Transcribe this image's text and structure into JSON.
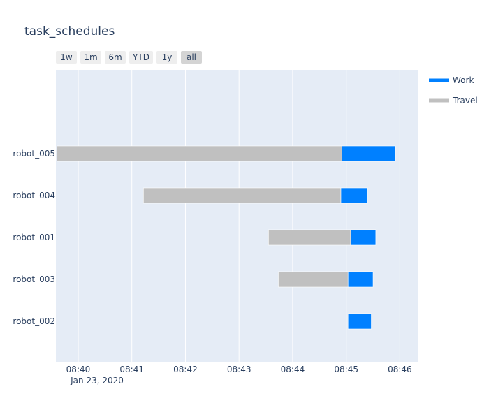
{
  "chart_data": {
    "type": "bar",
    "orientation": "horizontal-timeline",
    "title": "task_schedules",
    "date_label": "Jan 23, 2020",
    "xlim": [
      "08:39:35",
      "08:46:20"
    ],
    "x_ticks": [
      "08:40",
      "08:41",
      "08:42",
      "08:43",
      "08:44",
      "08:45",
      "08:46"
    ],
    "categories": [
      "robot_005",
      "robot_004",
      "robot_001",
      "robot_003",
      "robot_002"
    ],
    "series": [
      {
        "name": "Travel",
        "color": "#c0c0c0",
        "tasks": [
          {
            "robot": "robot_005",
            "start": "08:39:36",
            "end": "08:44:55"
          },
          {
            "robot": "robot_004",
            "start": "08:41:13",
            "end": "08:44:54"
          },
          {
            "robot": "robot_001",
            "start": "08:43:33",
            "end": "08:45:05"
          },
          {
            "robot": "robot_003",
            "start": "08:43:44",
            "end": "08:45:02"
          }
        ]
      },
      {
        "name": "Work",
        "color": "#0080ff",
        "tasks": [
          {
            "robot": "robot_005",
            "start": "08:44:55",
            "end": "08:45:55"
          },
          {
            "robot": "robot_004",
            "start": "08:44:54",
            "end": "08:45:24"
          },
          {
            "robot": "robot_001",
            "start": "08:45:05",
            "end": "08:45:33"
          },
          {
            "robot": "robot_003",
            "start": "08:45:02",
            "end": "08:45:30"
          },
          {
            "robot": "robot_002",
            "start": "08:45:02",
            "end": "08:45:28"
          }
        ]
      }
    ],
    "legend": [
      "Work",
      "Travel"
    ],
    "legend_position": "top-right",
    "grid": true,
    "plot_bg": "#e5ecf6"
  },
  "range_selector": {
    "buttons": [
      "1w",
      "1m",
      "6m",
      "YTD",
      "1y",
      "all"
    ],
    "active": "all"
  }
}
